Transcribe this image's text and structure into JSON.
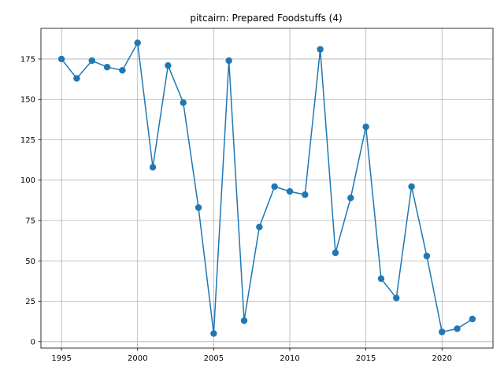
{
  "chart_data": {
    "type": "line",
    "title": "pitcairn: Prepared Foodstuffs (4)",
    "xlabel": "",
    "ylabel": "",
    "x": [
      1995,
      1996,
      1997,
      1998,
      1999,
      2000,
      2001,
      2002,
      2003,
      2004,
      2005,
      2006,
      2007,
      2008,
      2009,
      2010,
      2011,
      2012,
      2013,
      2014,
      2015,
      2016,
      2017,
      2018,
      2019,
      2020,
      2021,
      2022
    ],
    "series": [
      {
        "values": [
          175,
          163,
          174,
          170,
          168,
          185,
          108,
          171,
          148,
          83,
          5,
          174,
          13,
          71,
          96,
          93,
          91,
          181,
          55,
          89,
          133,
          39,
          27,
          96,
          53,
          6,
          8,
          14
        ]
      }
    ],
    "xlim": [
      1993.65,
      2023.35
    ],
    "ylim": [
      -4.0,
      194.0
    ],
    "xticks": [
      1995,
      2000,
      2005,
      2010,
      2015,
      2020
    ],
    "yticks": [
      0,
      25,
      50,
      75,
      100,
      125,
      150,
      175
    ],
    "grid": true,
    "marker": "circle",
    "line_color": "#1f77b4"
  }
}
